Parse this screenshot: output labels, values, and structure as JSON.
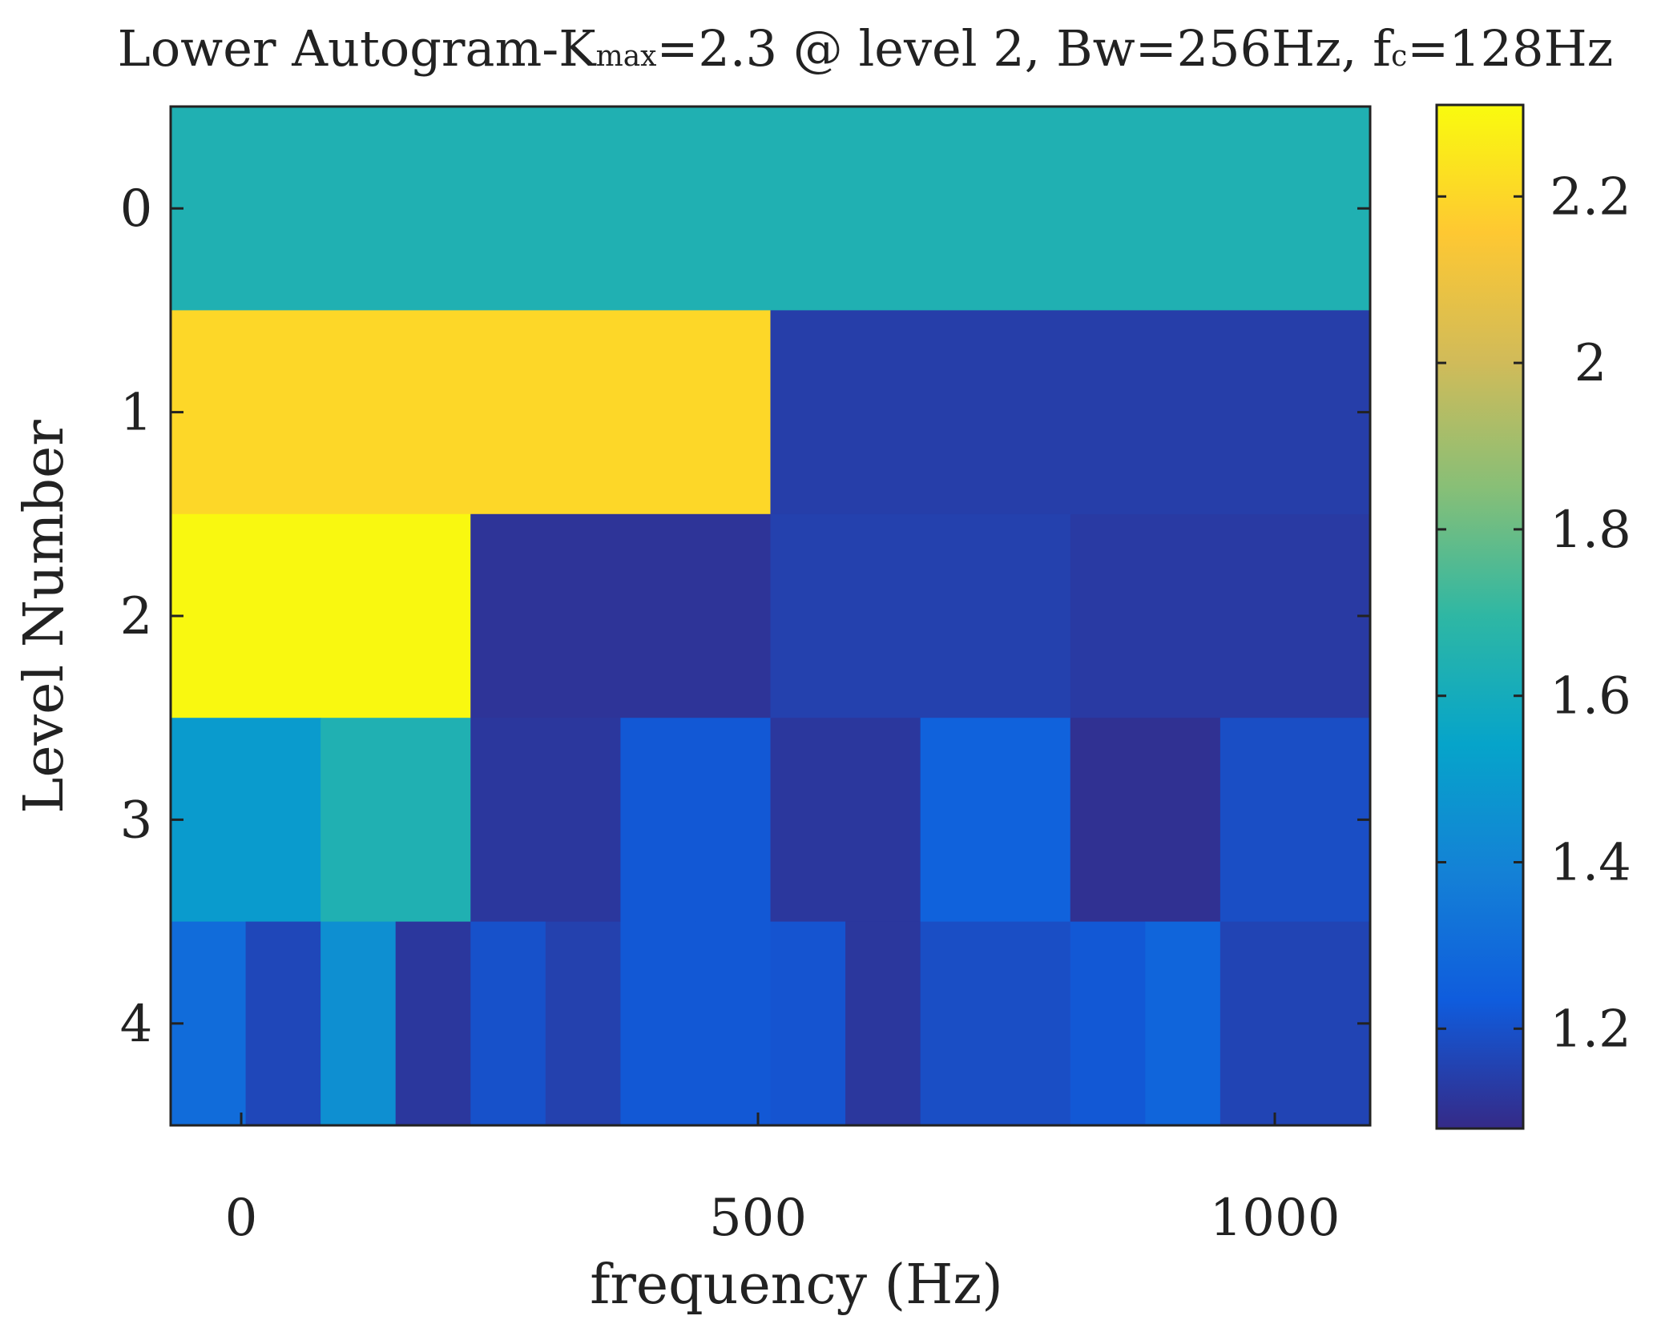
{
  "chart_data": {
    "type": "heatmap",
    "title": {
      "prefix": "Lower Autogram-K",
      "kmax_sub": "max",
      "middle": "=2.3 @ level 2, Bw=256Hz, f",
      "fc_sub": "c",
      "suffix": "=128Hz"
    },
    "xlabel": "frequency (Hz)",
    "ylabel": "Level Number",
    "xlim": [
      -68.25,
      1092.25
    ],
    "xticks": [
      0,
      500,
      1000
    ],
    "xtick_labels": [
      "0",
      "500",
      "1000"
    ],
    "yticks": [
      0,
      1,
      2,
      3,
      4
    ],
    "ytick_labels": [
      "0",
      "1",
      "2",
      "3",
      "4"
    ],
    "colormap": "parula",
    "colorbar": {
      "limits": [
        1.08,
        2.31
      ],
      "ticks": [
        1.2,
        1.4,
        1.6,
        1.8,
        2.0,
        2.2
      ],
      "tick_labels": [
        "1.2",
        "1.4",
        "1.6",
        "1.8",
        "2",
        "2.2"
      ]
    },
    "levels": [
      {
        "level": 0,
        "values": [
          1.64
        ]
      },
      {
        "level": 1,
        "values": [
          2.2,
          1.14
        ]
      },
      {
        "level": 2,
        "values": [
          2.3,
          1.11,
          1.15,
          1.13
        ]
      },
      {
        "level": 3,
        "values": [
          1.5,
          1.64,
          1.12,
          1.22,
          1.12,
          1.26,
          1.1,
          1.19
        ]
      },
      {
        "level": 4,
        "values": [
          1.3,
          1.17,
          1.45,
          1.12,
          1.2,
          1.15,
          1.22,
          1.22,
          1.21,
          1.12,
          1.19,
          1.19,
          1.22,
          1.27,
          1.16,
          1.16
        ]
      }
    ]
  }
}
